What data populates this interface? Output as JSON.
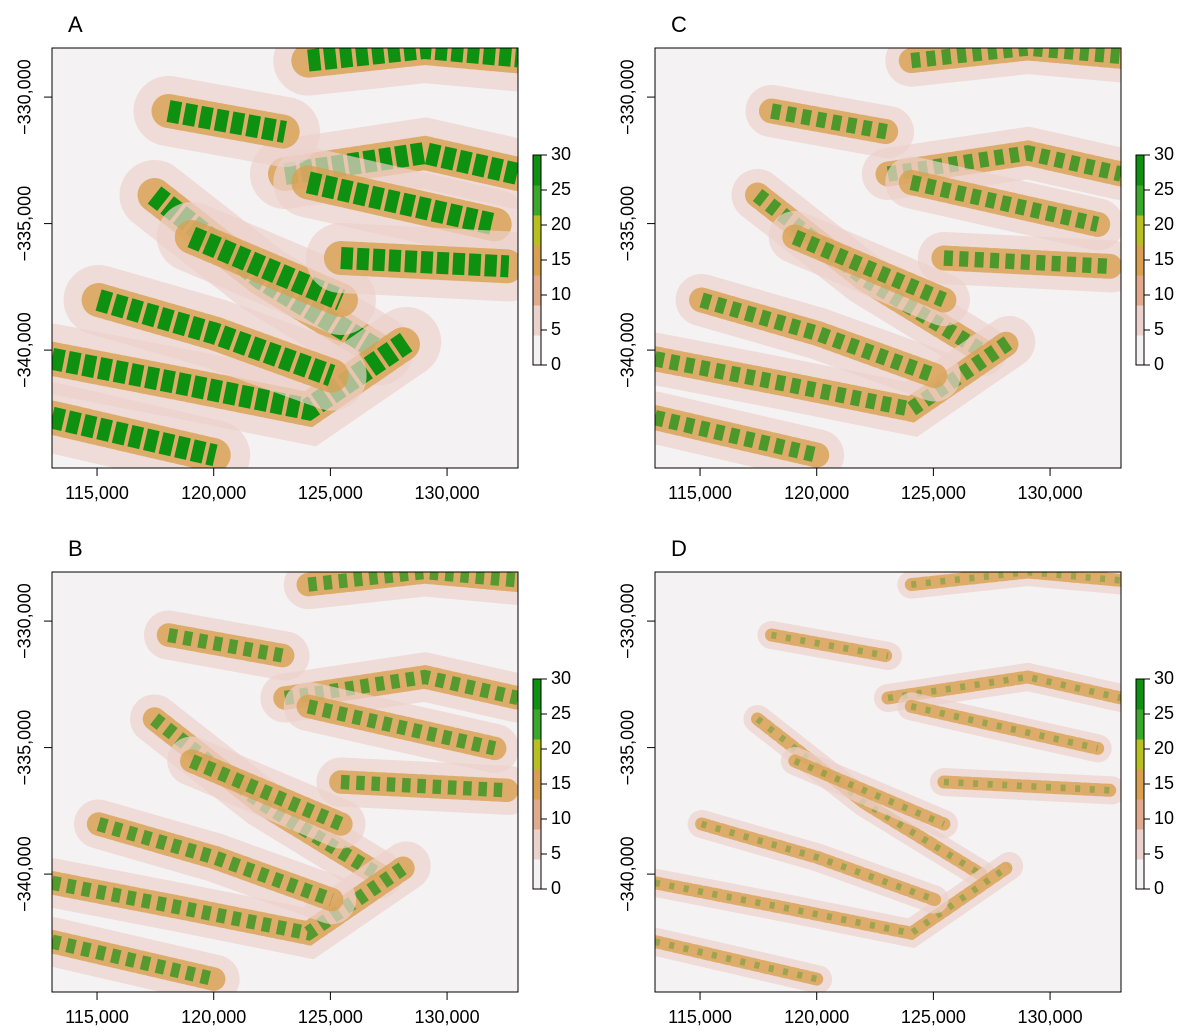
{
  "chart_data": [
    {
      "type": "raster",
      "title": "A",
      "xlim": [
        113070,
        133040
      ],
      "ylim": [
        -344660,
        -328060
      ],
      "xticks": [
        {
          "value": 115000,
          "label": "115,000"
        },
        {
          "value": 120000,
          "label": "120,000"
        },
        {
          "value": 125000,
          "label": "125,000"
        },
        {
          "value": 130000,
          "label": "130,000"
        }
      ],
      "yticks": [
        {
          "value": -330000,
          "label": "−330,000"
        },
        {
          "value": -335000,
          "label": "−335,000"
        },
        {
          "value": -340000,
          "label": "−340,000"
        }
      ],
      "colorbar": {
        "lim": [
          0,
          30
        ],
        "ticks": [
          0,
          5,
          10,
          15,
          20,
          25,
          30
        ],
        "colors": [
          "#f4f2f2",
          "#ecd2cc",
          "#e2aa8c",
          "#d8a050",
          "#b8c020",
          "#3aa82a",
          "#0e9010"
        ]
      }
    },
    {
      "type": "raster",
      "title": "B",
      "xlim": [
        113070,
        133040
      ],
      "ylim": [
        -344660,
        -328060
      ],
      "xticks": [
        {
          "value": 115000,
          "label": "115,000"
        },
        {
          "value": 120000,
          "label": "120,000"
        },
        {
          "value": 125000,
          "label": "125,000"
        },
        {
          "value": 130000,
          "label": "130,000"
        }
      ],
      "yticks": [
        {
          "value": -330000,
          "label": "−330,000"
        },
        {
          "value": -335000,
          "label": "−335,000"
        },
        {
          "value": -340000,
          "label": "−340,000"
        }
      ],
      "colorbar": {
        "lim": [
          0,
          30
        ],
        "ticks": [
          0,
          5,
          10,
          15,
          20,
          25,
          30
        ],
        "colors": [
          "#f4f2f2",
          "#ecd2cc",
          "#e2aa8c",
          "#d8a050",
          "#b8c020",
          "#3aa82a",
          "#0e9010"
        ]
      }
    },
    {
      "type": "raster",
      "title": "C",
      "xlim": [
        113070,
        133040
      ],
      "ylim": [
        -344660,
        -328060
      ],
      "xticks": [
        {
          "value": 115000,
          "label": "115,000"
        },
        {
          "value": 120000,
          "label": "120,000"
        },
        {
          "value": 125000,
          "label": "125,000"
        },
        {
          "value": 130000,
          "label": "130,000"
        }
      ],
      "yticks": [
        {
          "value": -330000,
          "label": "−330,000"
        },
        {
          "value": -335000,
          "label": "−335,000"
        },
        {
          "value": -340000,
          "label": "−340,000"
        }
      ],
      "colorbar": {
        "lim": [
          0,
          30
        ],
        "ticks": [
          0,
          5,
          10,
          15,
          20,
          25,
          30
        ],
        "colors": [
          "#f4f2f2",
          "#ecd2cc",
          "#e2aa8c",
          "#d8a050",
          "#b8c020",
          "#3aa82a",
          "#0e9010"
        ]
      }
    },
    {
      "type": "raster",
      "title": "D",
      "xlim": [
        113070,
        133040
      ],
      "ylim": [
        -344660,
        -328060
      ],
      "xticks": [
        {
          "value": 115000,
          "label": "115,000"
        },
        {
          "value": 120000,
          "label": "120,000"
        },
        {
          "value": 125000,
          "label": "125,000"
        },
        {
          "value": 130000,
          "label": "130,000"
        }
      ],
      "yticks": [
        {
          "value": -330000,
          "label": "−330,000"
        },
        {
          "value": -335000,
          "label": "−335,000"
        },
        {
          "value": -340000,
          "label": "−340,000"
        }
      ],
      "colorbar": {
        "lim": [
          0,
          30
        ],
        "ticks": [
          0,
          5,
          10,
          15,
          20,
          25,
          30
        ],
        "colors": [
          "#f4f2f2",
          "#ecd2cc",
          "#e2aa8c",
          "#d8a050",
          "#b8c020",
          "#3aa82a",
          "#0e9010"
        ]
      }
    }
  ]
}
